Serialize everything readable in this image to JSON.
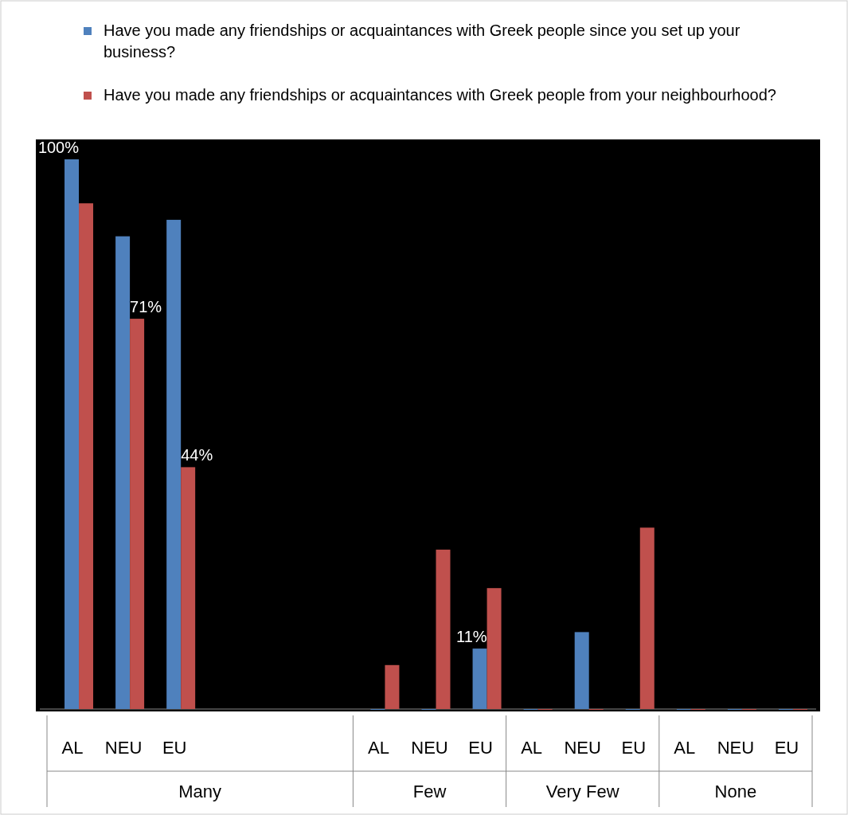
{
  "chart_data": {
    "type": "bar",
    "legend": "top",
    "categories": [
      "AL",
      "NEU",
      "EU",
      null,
      null,
      null,
      "AL",
      "NEU",
      "EU",
      "AL",
      "NEU",
      "EU",
      "AL",
      "NEU",
      "EU"
    ],
    "series": [
      {
        "name": "Have you made any friendships or acquaintances with Greek people since you set up your business?",
        "color": "#4f81bd",
        "values": [
          100,
          86,
          89,
          null,
          null,
          null,
          0,
          0,
          11,
          0,
          14,
          0,
          0,
          0,
          0
        ],
        "value_labels": [
          "100%",
          null,
          null,
          null,
          null,
          null,
          null,
          null,
          "11%",
          null,
          null,
          null,
          null,
          null,
          null
        ]
      },
      {
        "name": "Have you made any friendships or acquaintances with Greek people from your neighbourhood?",
        "color": "#c0504d",
        "values": [
          92,
          71,
          44,
          null,
          null,
          null,
          8,
          29,
          22,
          0,
          0,
          33,
          0,
          0,
          0
        ],
        "value_labels": [
          null,
          "71%",
          "44%",
          null,
          null,
          null,
          null,
          null,
          null,
          null,
          null,
          null,
          null,
          null,
          null
        ]
      }
    ],
    "annotations": [
      "Many",
      "Few",
      "Very Few",
      "None"
    ]
  }
}
